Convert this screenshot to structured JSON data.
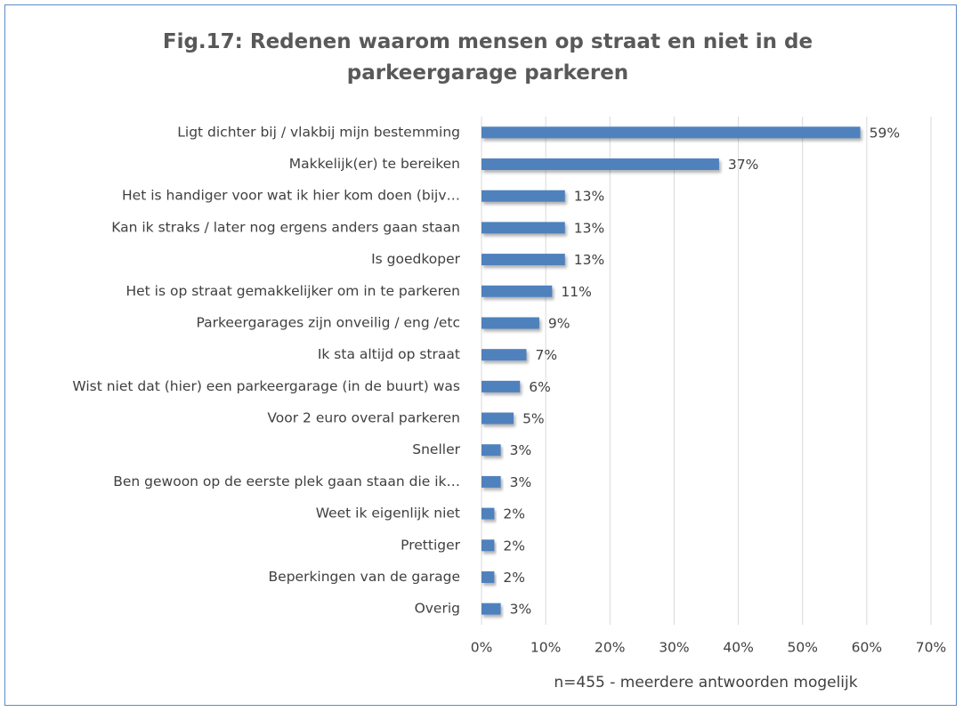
{
  "chart_data": {
    "type": "bar",
    "orientation": "horizontal",
    "title": "Fig.17: Redenen waarom mensen op straat en niet in de parkeergarage parkeren",
    "xlabel": "n=455 - meerdere antwoorden mogelijk",
    "categories": [
      "Ligt dichter bij / vlakbij mijn bestemming",
      "Makkelijk(er) te bereiken",
      "Het is handiger voor wat ik hier kom doen (bijv…",
      "Kan ik straks / later nog ergens anders gaan staan",
      "Is goedkoper",
      "Het is op straat gemakkelijker om in te parkeren",
      "Parkeergarages zijn onveilig / eng /etc",
      "Ik sta altijd op straat",
      "Wist niet dat (hier) een parkeergarage (in de buurt) was",
      "Voor 2 euro overal parkeren",
      "Sneller",
      "Ben gewoon op de eerste plek gaan staan die ik…",
      "Weet ik eigenlijk niet",
      "Prettiger",
      "Beperkingen van de garage",
      "Overig"
    ],
    "values": [
      59,
      37,
      13,
      13,
      13,
      11,
      9,
      7,
      6,
      5,
      3,
      3,
      2,
      2,
      2,
      3
    ],
    "value_labels": [
      "59%",
      "37%",
      "13%",
      "13%",
      "13%",
      "11%",
      "9%",
      "7%",
      "6%",
      "5%",
      "3%",
      "3%",
      "2%",
      "2%",
      "2%",
      "3%"
    ],
    "color": "#4f81bd",
    "xlim": [
      0,
      70
    ],
    "xticks": [
      {
        "value": 0,
        "label": "0%"
      },
      {
        "value": 10,
        "label": "10%"
      },
      {
        "value": 20,
        "label": "20%"
      },
      {
        "value": 30,
        "label": "30%"
      },
      {
        "value": 40,
        "label": "40%"
      },
      {
        "value": 50,
        "label": "50%"
      },
      {
        "value": 60,
        "label": "60%"
      },
      {
        "value": 70,
        "label": "70%"
      }
    ],
    "grid": true
  }
}
